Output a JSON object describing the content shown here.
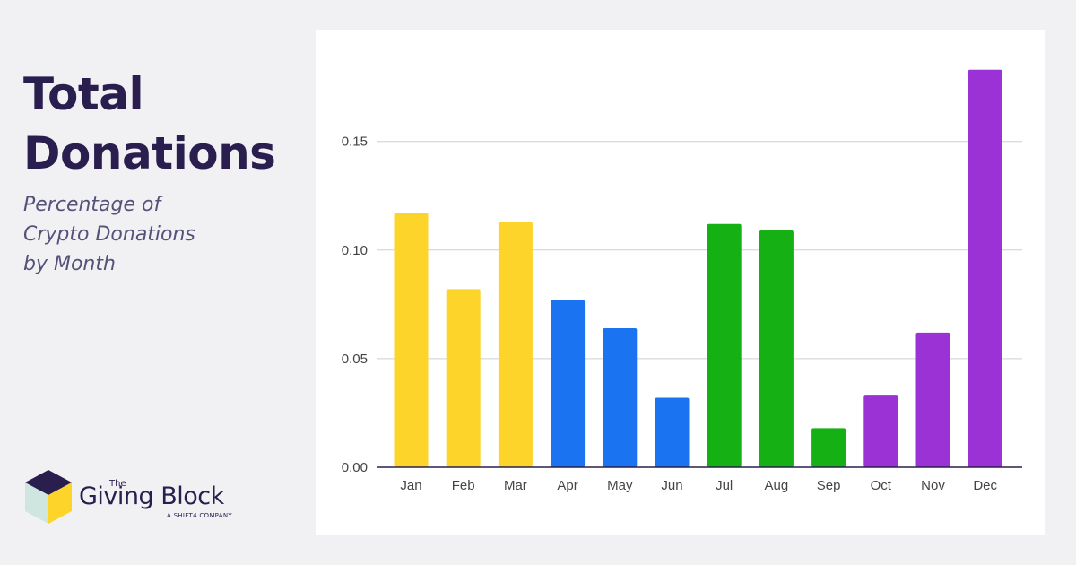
{
  "heading": {
    "title_line1": "Total",
    "title_line2": "Donations",
    "subtitle_line1": "Percentage of",
    "subtitle_line2": "Crypto Donations",
    "subtitle_line3": "by Month"
  },
  "logo": {
    "the": "The",
    "name": "Giving Block",
    "tagline": "A SHIFT4 COMPANY"
  },
  "chart_data": {
    "type": "bar",
    "categories": [
      "Jan",
      "Feb",
      "Mar",
      "Apr",
      "May",
      "Jun",
      "Jul",
      "Aug",
      "Sep",
      "Oct",
      "Nov",
      "Dec"
    ],
    "values": [
      0.117,
      0.082,
      0.113,
      0.077,
      0.064,
      0.032,
      0.112,
      0.109,
      0.018,
      0.033,
      0.062,
      0.183
    ],
    "colors": [
      "#fcd42a",
      "#fcd42a",
      "#fcd42a",
      "#1a73f0",
      "#1a73f0",
      "#1a73f0",
      "#14b014",
      "#14b014",
      "#14b014",
      "#9a32d6",
      "#9a32d6",
      "#9a32d6"
    ],
    "yticks": [
      "0.00",
      "0.05",
      "0.10",
      "0.15"
    ],
    "ytick_values": [
      0,
      0.05,
      0.1,
      0.15
    ],
    "ylim": [
      0,
      0.19
    ],
    "grid": true,
    "xlabel": "",
    "ylabel": ""
  }
}
